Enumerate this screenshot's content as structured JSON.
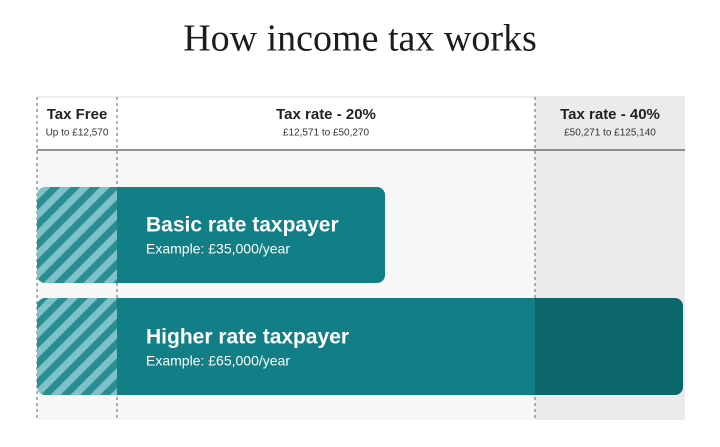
{
  "title": "How income tax works",
  "bands": [
    {
      "label": "Tax Free",
      "range": "Up to £12,570"
    },
    {
      "label": "Tax rate - 20%",
      "range": "£12,571 to £50,270"
    },
    {
      "label": "Tax rate - 40%",
      "range": "£50,271 to £125,140"
    }
  ],
  "bars": [
    {
      "label": "Basic rate taxpayer",
      "example": "Example: £35,000/year"
    },
    {
      "label": "Higher rate taxpayer",
      "example": "Example: £65,000/year"
    }
  ]
}
